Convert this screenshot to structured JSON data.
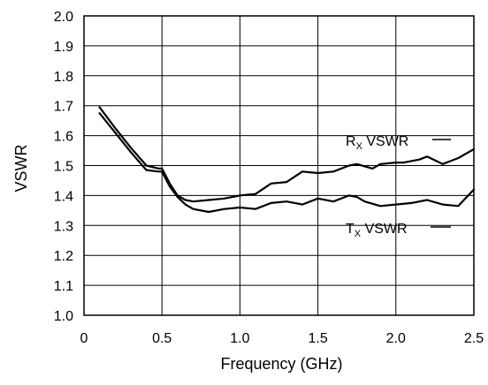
{
  "chart_data": {
    "type": "line",
    "title": "",
    "xlabel": "Frequency (GHz)",
    "ylabel": "VSWR",
    "xlim": [
      0,
      2.5
    ],
    "ylim": [
      1.0,
      2.0
    ],
    "x_ticks": [
      "0",
      "0.5",
      "1.0",
      "1.5",
      "2.0",
      "2.5"
    ],
    "y_ticks": [
      "1.0",
      "1.1",
      "1.2",
      "1.3",
      "1.4",
      "1.5",
      "1.6",
      "1.7",
      "1.8",
      "1.9",
      "2.0"
    ],
    "grid": true,
    "series": [
      {
        "name": "RX VSWR",
        "label_main": "R",
        "label_sub": "X",
        "label_rest": " VSWR",
        "x": [
          0.1,
          0.2,
          0.3,
          0.4,
          0.48,
          0.5,
          0.55,
          0.6,
          0.65,
          0.7,
          0.8,
          0.9,
          1.0,
          1.1,
          1.2,
          1.3,
          1.4,
          1.5,
          1.6,
          1.7,
          1.75,
          1.85,
          1.9,
          2.0,
          2.05,
          2.15,
          2.2,
          2.3,
          2.4,
          2.5
        ],
        "values": [
          1.695,
          1.625,
          1.56,
          1.5,
          1.49,
          1.49,
          1.44,
          1.4,
          1.385,
          1.38,
          1.385,
          1.39,
          1.4,
          1.405,
          1.44,
          1.445,
          1.48,
          1.475,
          1.48,
          1.5,
          1.505,
          1.49,
          1.505,
          1.51,
          1.51,
          1.52,
          1.53,
          1.505,
          1.525,
          1.555
        ]
      },
      {
        "name": "TX VSWR",
        "label_main": "T",
        "label_sub": "X",
        "label_rest": " VSWR",
        "x": [
          0.1,
          0.2,
          0.3,
          0.4,
          0.48,
          0.5,
          0.55,
          0.6,
          0.65,
          0.7,
          0.8,
          0.9,
          1.0,
          1.1,
          1.2,
          1.3,
          1.4,
          1.5,
          1.6,
          1.7,
          1.75,
          1.8,
          1.9,
          2.0,
          2.1,
          2.2,
          2.3,
          2.4,
          2.5
        ],
        "values": [
          1.675,
          1.61,
          1.545,
          1.485,
          1.48,
          1.48,
          1.43,
          1.395,
          1.37,
          1.355,
          1.345,
          1.355,
          1.36,
          1.355,
          1.375,
          1.38,
          1.37,
          1.39,
          1.38,
          1.4,
          1.395,
          1.38,
          1.365,
          1.37,
          1.375,
          1.385,
          1.37,
          1.365,
          1.42
        ]
      }
    ]
  }
}
